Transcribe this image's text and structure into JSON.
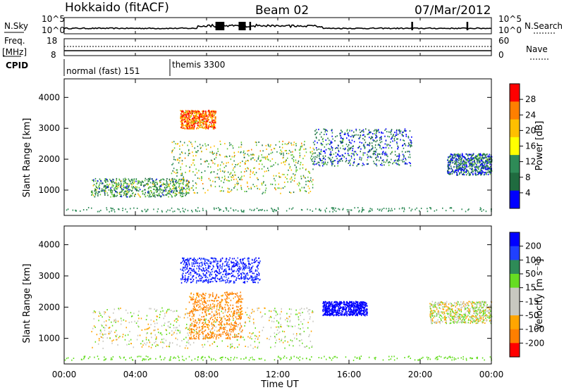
{
  "header": {
    "station": "Hokkaido (fitACF)",
    "beam": "Beam 02",
    "date": "07/Mar/2012"
  },
  "noise_panel": {
    "left_label": "N.Sky",
    "right_label": "N.Search",
    "ticks_left": [
      "10^5",
      "10^0"
    ],
    "ticks_right": [
      "10^5",
      "10^0"
    ]
  },
  "freq_panel": {
    "left_label_line1": "Freq.",
    "left_label_line2": "[MHz]",
    "right_label": "Nave",
    "ticks_left": [
      "18",
      "8"
    ],
    "ticks_right": [
      "60",
      "0"
    ]
  },
  "cpid": {
    "label": "CPID",
    "modes": [
      {
        "name": "normal (fast) 151",
        "start_hour": 0
      },
      {
        "name": "themis 3300",
        "start_hour": 6
      }
    ]
  },
  "colorbar_power": {
    "label": "Power [dB]",
    "ticks": [
      "28",
      "24",
      "20",
      "16",
      "12",
      "8",
      "4"
    ],
    "colors": [
      "#ff0000",
      "#ff7f00",
      "#ffbf00",
      "#ffff00",
      "#2e8b57",
      "#1f6b3f",
      "#0000ff"
    ]
  },
  "colorbar_velocity": {
    "label": "Velocity [m s⁻¹]",
    "ticks": [
      "200",
      "100",
      "50",
      "15",
      "-15",
      "-50",
      "-100",
      "-200"
    ],
    "colors": [
      "#0000ff",
      "#2040ff",
      "#2e8b57",
      "#66dd22",
      "#c8c8c0",
      "#c8c8c0",
      "#ffa500",
      "#ff7f00",
      "#ff0000"
    ]
  },
  "chart_data": [
    {
      "type": "heatmap",
      "title": "Power",
      "xlabel": "Time UT",
      "ylabel": "Slant Range [km]",
      "x_ticks": [
        "00:00",
        "04:00",
        "08:00",
        "12:00",
        "16:00",
        "20:00",
        "00:00"
      ],
      "y_ticks": [
        "1000",
        "2000",
        "3000",
        "4000"
      ],
      "xlim_hours": [
        0,
        24
      ],
      "ylim_km": [
        180,
        4600
      ],
      "colorbar_ticks_db": [
        4,
        8,
        12,
        16,
        20,
        24,
        28
      ],
      "scatter_regions": [
        {
          "hours": [
            1.5,
            7
          ],
          "range_km": [
            800,
            1400
          ],
          "power_db": 12
        },
        {
          "hours": [
            6,
            14
          ],
          "range_km": [
            900,
            2600
          ],
          "power_db": 16
        },
        {
          "hours": [
            6.5,
            8.5
          ],
          "range_km": [
            3000,
            3600
          ],
          "power_db": 24
        },
        {
          "hours": [
            14,
            19.5
          ],
          "range_km": [
            1800,
            3000
          ],
          "power_db": 8
        },
        {
          "hours": [
            21.5,
            24
          ],
          "range_km": [
            1500,
            2200
          ],
          "power_db": 8
        }
      ]
    },
    {
      "type": "heatmap",
      "title": "Velocity",
      "xlabel": "Time UT",
      "ylabel": "Slant Range [km]",
      "x_ticks": [
        "00:00",
        "04:00",
        "08:00",
        "12:00",
        "16:00",
        "20:00",
        "00:00"
      ],
      "y_ticks": [
        "1000",
        "2000",
        "3000",
        "4000"
      ],
      "xlim_hours": [
        0,
        24
      ],
      "ylim_km": [
        180,
        4600
      ],
      "colorbar_ticks_ms": [
        -200,
        -100,
        -50,
        -15,
        15,
        50,
        100,
        200
      ],
      "scatter_regions": [
        {
          "hours": [
            1.5,
            14
          ],
          "range_km": [
            700,
            2000
          ],
          "velocity_ms": 0
        },
        {
          "hours": [
            6.5,
            11
          ],
          "range_km": [
            2800,
            3600
          ],
          "velocity_ms": 150
        },
        {
          "hours": [
            14.5,
            17
          ],
          "range_km": [
            1750,
            2200
          ],
          "velocity_ms": 200
        },
        {
          "hours": [
            7,
            10
          ],
          "range_km": [
            1000,
            2500
          ],
          "velocity_ms": -80
        },
        {
          "hours": [
            20.5,
            24
          ],
          "range_km": [
            1500,
            2200
          ],
          "velocity_ms": 0
        }
      ]
    }
  ]
}
